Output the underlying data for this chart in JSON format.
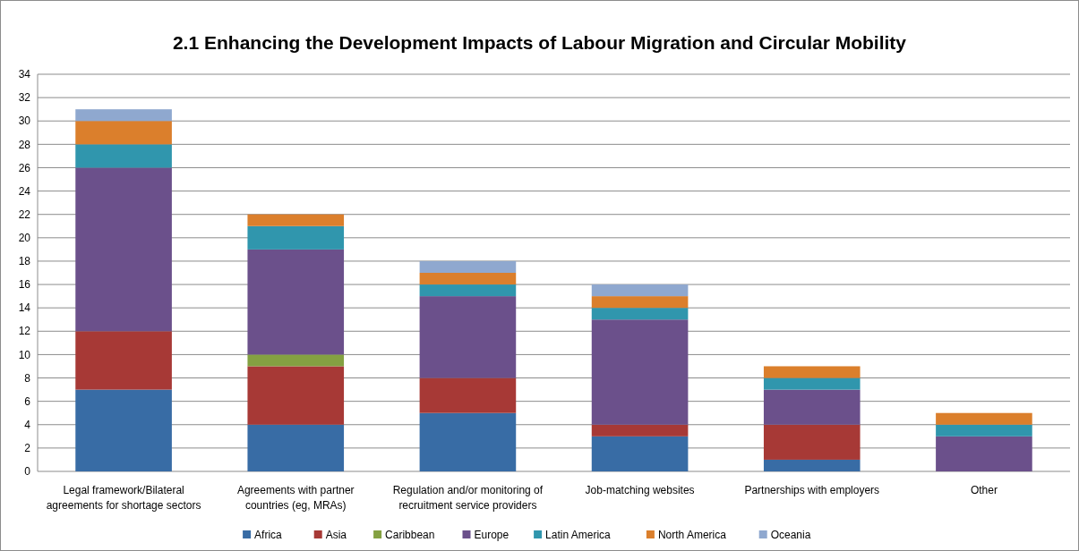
{
  "chart_data": {
    "type": "bar",
    "title": "2.1 Enhancing the Development Impacts of Labour Migration and Circular Mobility",
    "stacked": true,
    "categories": [
      "Legal framework/Bilateral agreements for shortage sectors",
      "Agreements with partner countries (eg, MRAs)",
      "Regulation and/or monitoring of recruitment service providers",
      "Job-matching websites",
      "Partnerships with employers",
      "Other"
    ],
    "series": [
      {
        "name": "Africa",
        "color": "#386ca5",
        "values": [
          7,
          4,
          5,
          3,
          1,
          0
        ]
      },
      {
        "name": "Asia",
        "color": "#a73936",
        "values": [
          5,
          5,
          3,
          1,
          3,
          0
        ]
      },
      {
        "name": "Caribbean",
        "color": "#84a142",
        "values": [
          0,
          1,
          0,
          0,
          0,
          0
        ]
      },
      {
        "name": "Europe",
        "color": "#6b508b",
        "values": [
          14,
          9,
          7,
          9,
          3,
          3
        ]
      },
      {
        "name": "Latin America",
        "color": "#3096ad",
        "values": [
          2,
          2,
          1,
          1,
          1,
          1
        ]
      },
      {
        "name": "North America",
        "color": "#db7f2c",
        "values": [
          2,
          1,
          1,
          1,
          1,
          1
        ]
      },
      {
        "name": "Oceania",
        "color": "#8fa8cf",
        "values": [
          1,
          0,
          1,
          1,
          0,
          0
        ]
      }
    ],
    "ylim": [
      0,
      34
    ],
    "yticks": [
      0,
      2,
      4,
      6,
      8,
      10,
      12,
      14,
      16,
      18,
      20,
      22,
      24,
      26,
      28,
      30,
      32,
      34
    ],
    "grid": "y",
    "legend": "bottom"
  }
}
